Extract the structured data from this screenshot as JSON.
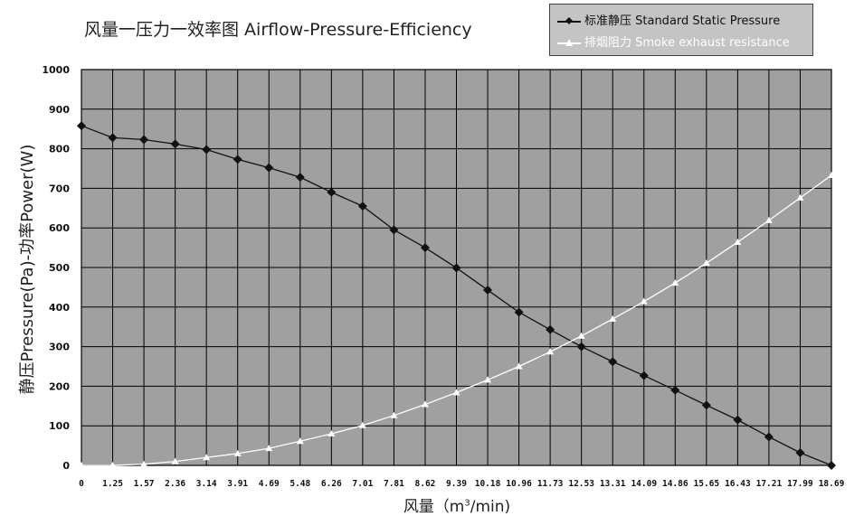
{
  "chart_data": {
    "type": "line",
    "title": "风量一压力一效率图 Airflow-Pressure-Efficiency",
    "xlabel_prefix": "风量（m",
    "xlabel_sup": "3",
    "xlabel_suffix": "/min)",
    "ylabel": "静压Pressure(Pa)-功率Power(W)",
    "ylim": [
      0,
      1000
    ],
    "yticks": [
      0,
      100,
      200,
      300,
      400,
      500,
      600,
      700,
      800,
      900,
      1000
    ],
    "categories": [
      "0",
      "1.25",
      "1.57",
      "2.36",
      "3.14",
      "3.91",
      "4.69",
      "5.48",
      "6.26",
      "7.01",
      "7.81",
      "8.62",
      "9.39",
      "10.18",
      "10.96",
      "11.73",
      "12.53",
      "13.31",
      "14.09",
      "14.86",
      "15.65",
      "16.43",
      "17.21",
      "17.99",
      "18.69"
    ],
    "grid": true,
    "legend_position": "top-right",
    "series": [
      {
        "name": "标准静压 Standard Static Pressure",
        "color": "#111111",
        "marker": "diamond",
        "values": [
          858,
          828,
          823,
          812,
          798,
          773,
          752,
          728,
          690,
          655,
          595,
          550,
          499,
          443,
          387,
          343,
          300,
          262,
          227,
          190,
          152,
          115,
          72,
          32,
          0
        ]
      },
      {
        "name": "排烟阻力 Smoke exhaust resistance",
        "color": "#ffffff",
        "marker": "triangle",
        "values": [
          0,
          0,
          3,
          10,
          20,
          30,
          43,
          61,
          80,
          101,
          126,
          154,
          184,
          216,
          250,
          287,
          327,
          370,
          414,
          461,
          511,
          564,
          619,
          676,
          733
        ]
      }
    ]
  }
}
